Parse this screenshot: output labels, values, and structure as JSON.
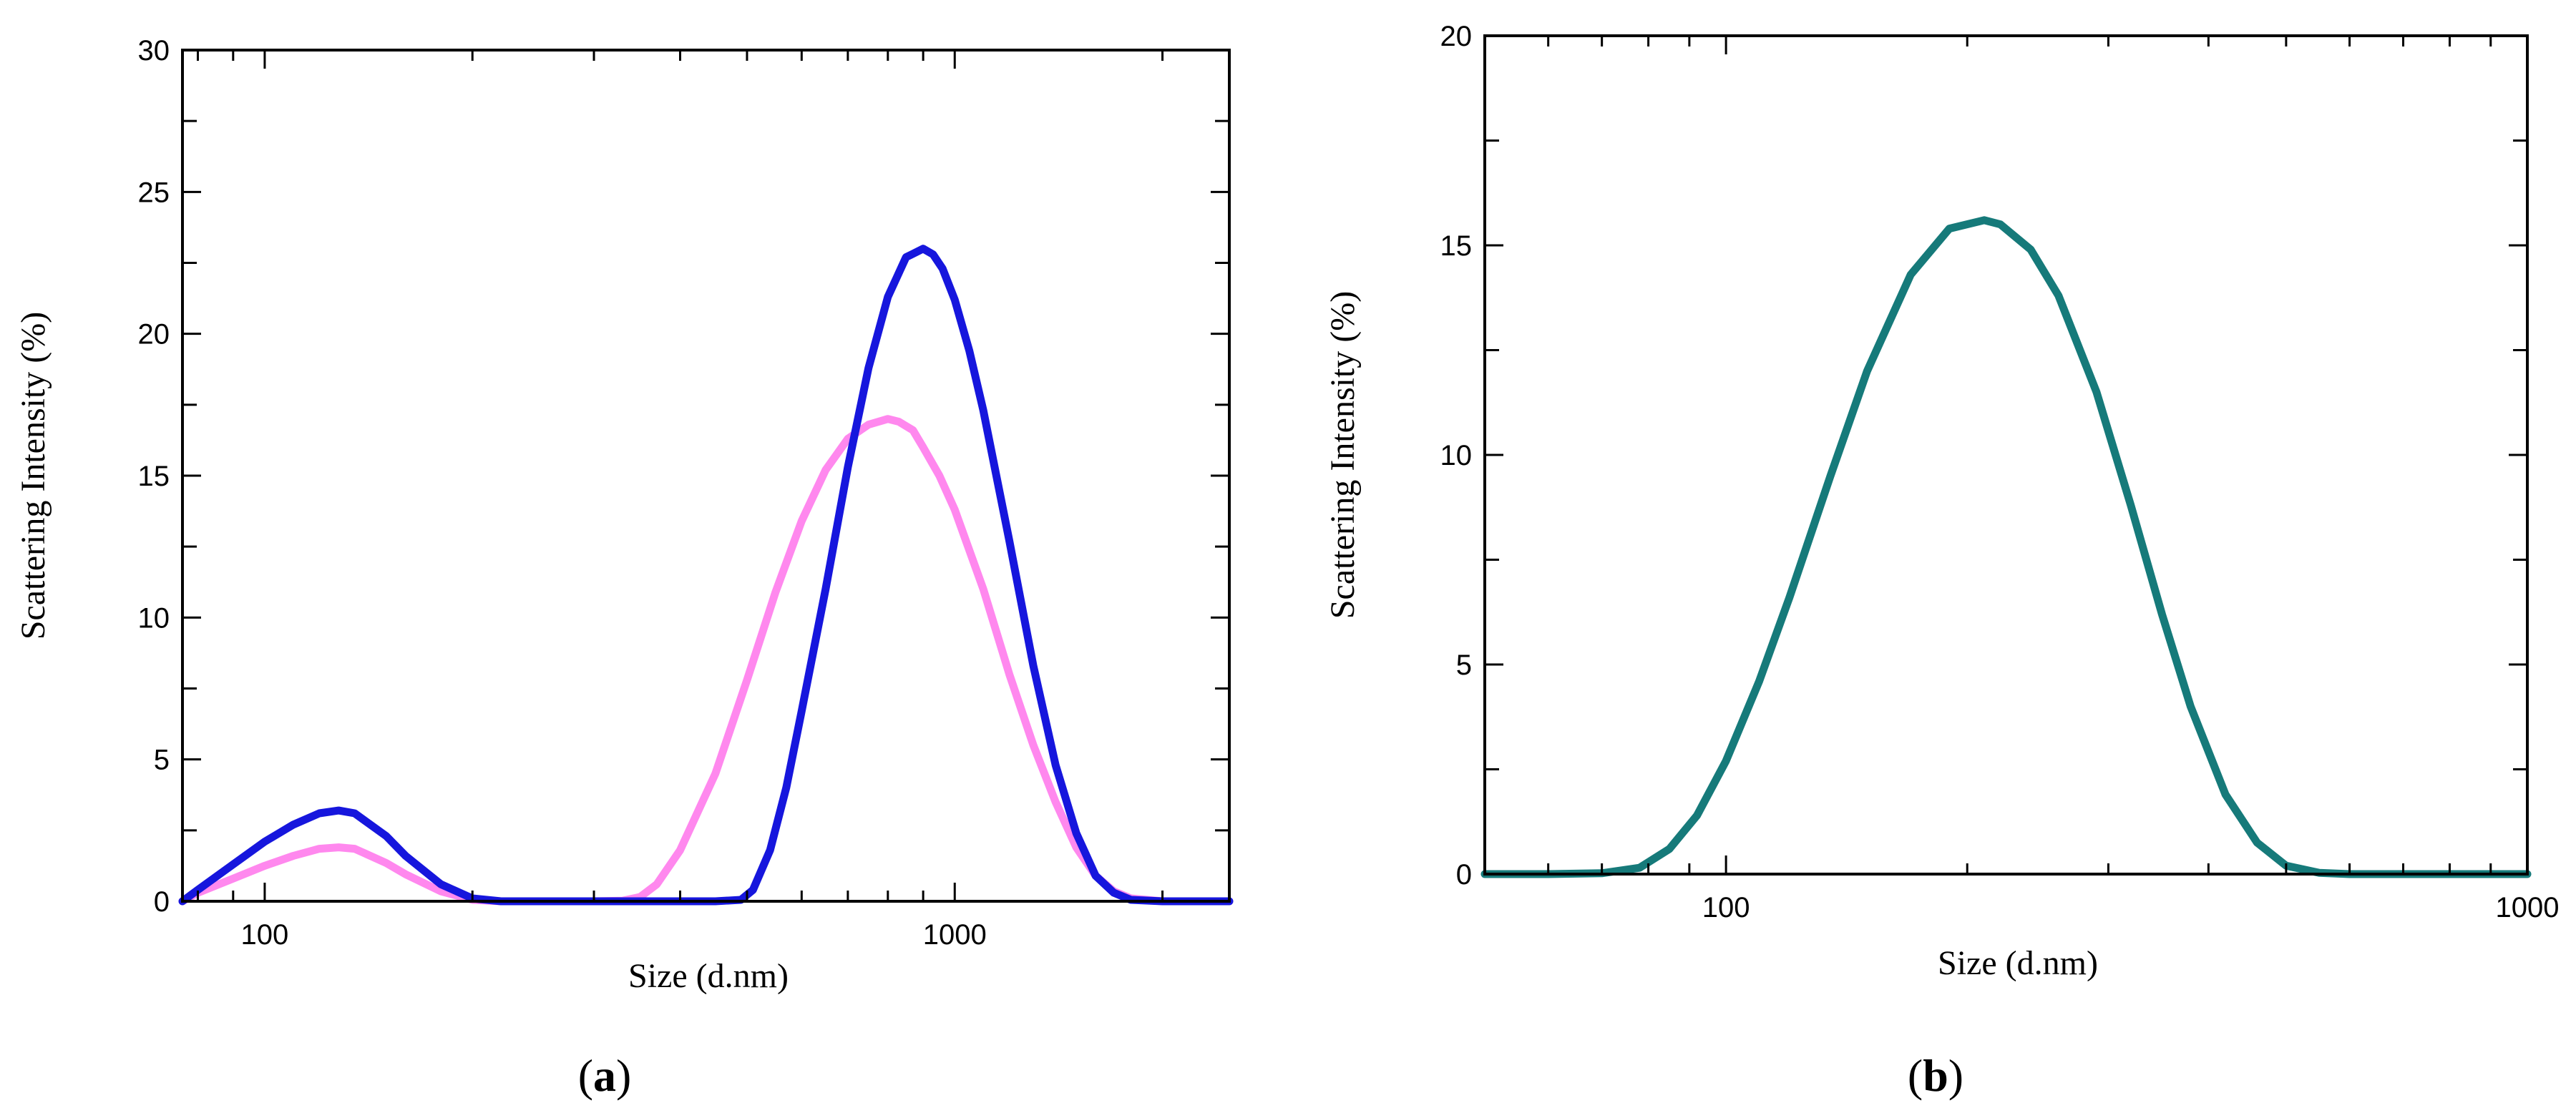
{
  "chart_data": [
    {
      "type": "line",
      "panel": "a",
      "panel_label": {
        "open": "(",
        "letter": "a",
        "close": ")"
      },
      "xlabel": "Size (d.nm)",
      "ylabel": "Scattering Intensity (%)",
      "xscale": "log",
      "xlim": [
        76,
        2500
      ],
      "ylim": [
        0,
        30
      ],
      "yticks": [
        0,
        5,
        10,
        15,
        20,
        25,
        30
      ],
      "ytick_labels": [
        "0",
        "5",
        "10",
        "15",
        "20",
        "25",
        "30"
      ],
      "xticks_major": [
        100,
        1000
      ],
      "xtick_labels": [
        "100",
        "1000"
      ],
      "xticks_minor": [
        80,
        90,
        200,
        300,
        400,
        500,
        600,
        700,
        800,
        900,
        2000
      ],
      "grid": false,
      "series": [
        {
          "name": "magenta",
          "color": "#ff88ee",
          "x": [
            76,
            80,
            90,
            100,
            110,
            120,
            128,
            135,
            150,
            160,
            180,
            200,
            220,
            300,
            330,
            350,
            370,
            400,
            450,
            500,
            550,
            600,
            650,
            700,
            750,
            800,
            830,
            870,
            900,
            950,
            1000,
            1100,
            1200,
            1300,
            1400,
            1500,
            1600,
            1700,
            1800,
            2000,
            2500
          ],
          "y": [
            0.0,
            0.3,
            0.8,
            1.25,
            1.6,
            1.85,
            1.9,
            1.85,
            1.35,
            0.95,
            0.35,
            0.05,
            0.0,
            0.0,
            0.02,
            0.15,
            0.6,
            1.8,
            4.5,
            7.8,
            10.9,
            13.4,
            15.2,
            16.3,
            16.8,
            17.0,
            16.9,
            16.6,
            16.0,
            15.0,
            13.8,
            11.0,
            8.0,
            5.5,
            3.5,
            1.9,
            0.9,
            0.35,
            0.1,
            0.0,
            0.0
          ]
        },
        {
          "name": "blue",
          "color": "#1616dd",
          "x": [
            76,
            80,
            90,
            100,
            110,
            120,
            128,
            135,
            150,
            160,
            180,
            200,
            220,
            450,
            490,
            510,
            540,
            570,
            600,
            650,
            700,
            750,
            800,
            850,
            900,
            930,
            960,
            1000,
            1050,
            1100,
            1200,
            1300,
            1400,
            1500,
            1600,
            1700,
            1800,
            2000,
            2500
          ],
          "y": [
            0.0,
            0.4,
            1.3,
            2.1,
            2.7,
            3.1,
            3.2,
            3.1,
            2.3,
            1.6,
            0.6,
            0.1,
            0.0,
            0.0,
            0.05,
            0.4,
            1.8,
            4.0,
            6.7,
            11.0,
            15.3,
            18.8,
            21.3,
            22.7,
            23.0,
            22.8,
            22.3,
            21.2,
            19.4,
            17.3,
            12.7,
            8.3,
            4.8,
            2.4,
            0.9,
            0.3,
            0.05,
            0.0,
            0.0
          ]
        }
      ]
    },
    {
      "type": "line",
      "panel": "b",
      "panel_label": {
        "open": "(",
        "letter": "b",
        "close": ")"
      },
      "xlabel": "Size (d.nm)",
      "ylabel": "Scattering Intensity (%)",
      "xscale": "log",
      "xlim": [
        50,
        1000
      ],
      "ylim": [
        0,
        20
      ],
      "yticks": [
        0,
        5,
        10,
        15,
        20
      ],
      "ytick_labels": [
        "0",
        "5",
        "10",
        "15",
        "20"
      ],
      "xticks_major": [
        100,
        1000
      ],
      "xtick_labels": [
        "100",
        "1000"
      ],
      "xticks_minor": [
        60,
        70,
        80,
        90,
        200,
        300,
        400,
        500,
        600,
        700,
        800,
        900
      ],
      "grid": false,
      "series": [
        {
          "name": "teal",
          "color": "#167a7a",
          "x": [
            50,
            60,
            70,
            78,
            85,
            92,
            100,
            110,
            120,
            135,
            150,
            170,
            190,
            210,
            220,
            240,
            260,
            290,
            320,
            350,
            380,
            420,
            460,
            500,
            550,
            600,
            700,
            800,
            1000
          ],
          "y": [
            0.0,
            0.0,
            0.02,
            0.15,
            0.6,
            1.4,
            2.7,
            4.6,
            6.6,
            9.5,
            12.0,
            14.3,
            15.4,
            15.6,
            15.5,
            14.9,
            13.8,
            11.5,
            8.8,
            6.2,
            4.0,
            1.9,
            0.75,
            0.2,
            0.03,
            0.0,
            0.0,
            0.0,
            0.0
          ]
        }
      ]
    }
  ]
}
